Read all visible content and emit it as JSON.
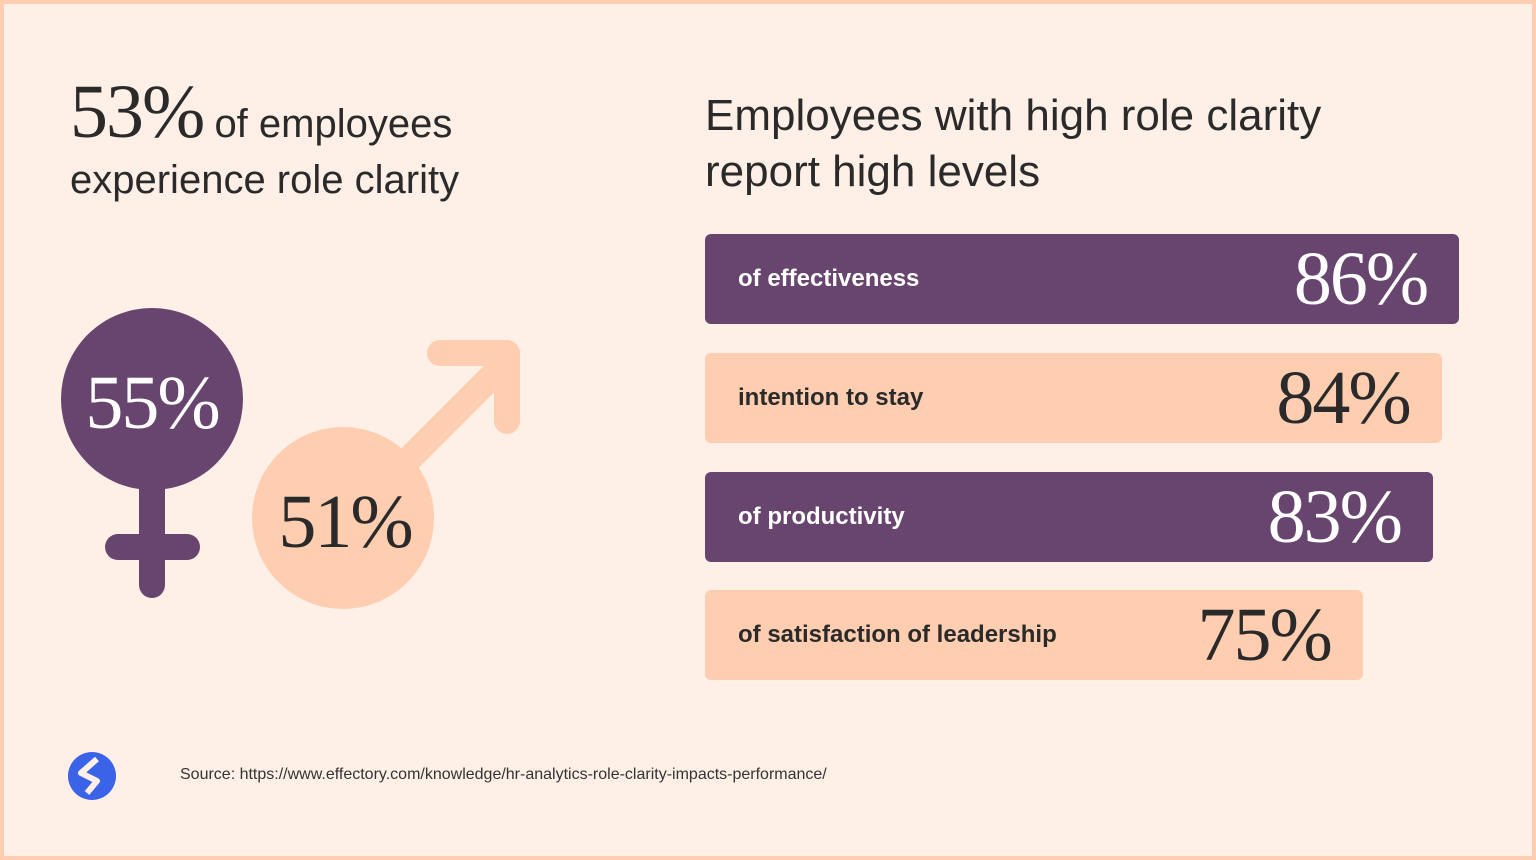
{
  "left": {
    "headline_number": "53%",
    "headline_text_line1": "of employees",
    "headline_text_line2": "experience role clarity",
    "female_value": "55%",
    "male_value": "51%"
  },
  "right": {
    "title_line1": "Employees with high role clarity",
    "title_line2": "report high levels"
  },
  "chart_data": {
    "type": "bar",
    "orientation": "horizontal",
    "categories": [
      "of effectiveness",
      "intention to stay",
      "of productivity",
      "of satisfaction of leadership"
    ],
    "values": [
      86,
      84,
      83,
      75
    ],
    "value_labels": [
      "86%",
      "84%",
      "83%",
      "75%"
    ],
    "colors": [
      "#68456F",
      "#FFCEB1",
      "#68456F",
      "#FFCEB1"
    ],
    "title": "Employees with high role clarity report high levels"
  },
  "footer": {
    "source": "Source: https://www.effectory.com/knowledge/hr-analytics-role-clarity-impacts-performance/",
    "logo_icon": "effectory-logo-icon"
  },
  "colors": {
    "purple": "#68456F",
    "peach": "#FFCEB1",
    "background": "#FFF0E7",
    "logo_blue": "#3B63E8"
  }
}
